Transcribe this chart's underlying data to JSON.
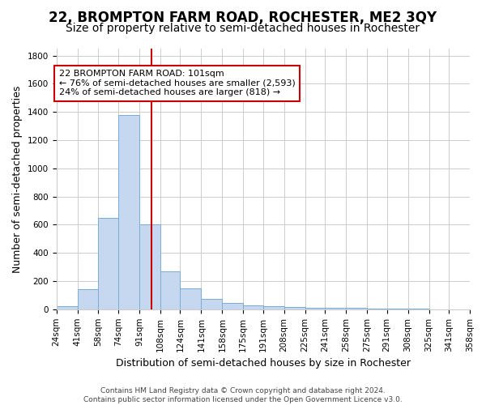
{
  "title": "22, BROMPTON FARM ROAD, ROCHESTER, ME2 3QY",
  "subtitle": "Size of property relative to semi-detached houses in Rochester",
  "xlabel": "Distribution of semi-detached houses by size in Rochester",
  "ylabel": "Number of semi-detached properties",
  "bin_edges": [
    24,
    41,
    58,
    74,
    91,
    108,
    124,
    141,
    158,
    175,
    191,
    208,
    225,
    241,
    258,
    275,
    291,
    308,
    325,
    341,
    358
  ],
  "bar_heights": [
    20,
    140,
    650,
    1380,
    600,
    270,
    150,
    75,
    45,
    30,
    20,
    15,
    10,
    10,
    10,
    5,
    5,
    5,
    0,
    0
  ],
  "bar_color": "#c5d8f0",
  "bar_edgecolor": "#7aacd4",
  "property_size": 101,
  "vline_color": "#cc0000",
  "annotation_line1": "22 BROMPTON FARM ROAD: 101sqm",
  "annotation_line2": "← 76% of semi-detached houses are smaller (2,593)",
  "annotation_line3": "24% of semi-detached houses are larger (818) →",
  "annotation_box_edgecolor": "#cc0000",
  "annotation_box_facecolor": "#ffffff",
  "ylim": [
    0,
    1850
  ],
  "yticks": [
    0,
    200,
    400,
    600,
    800,
    1000,
    1200,
    1400,
    1600,
    1800
  ],
  "footer_line1": "Contains HM Land Registry data © Crown copyright and database right 2024.",
  "footer_line2": "Contains public sector information licensed under the Open Government Licence v3.0.",
  "background_color": "#ffffff",
  "grid_color": "#cccccc",
  "title_fontsize": 12,
  "subtitle_fontsize": 10,
  "tick_label_fontsize": 7.5,
  "ylabel_fontsize": 9,
  "xlabel_fontsize": 9,
  "footer_fontsize": 6.5
}
